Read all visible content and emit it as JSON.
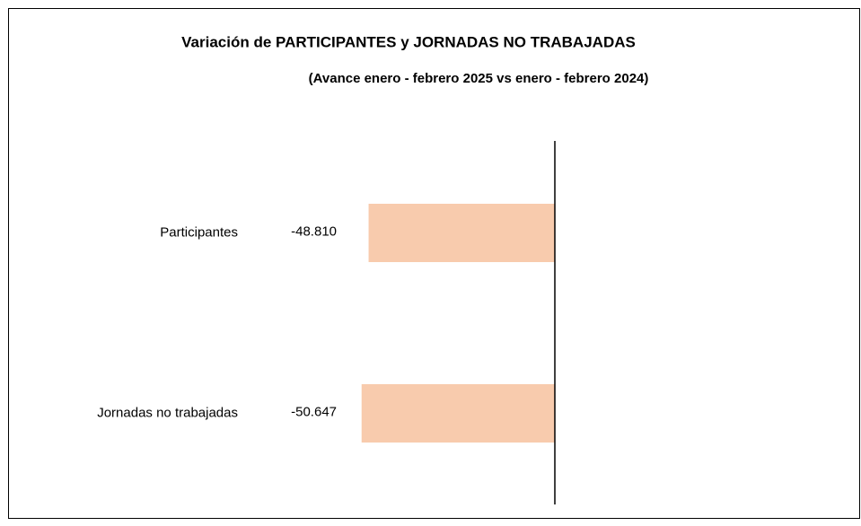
{
  "chart_data": {
    "type": "bar",
    "orientation": "horizontal",
    "title": "Variación de PARTICIPANTES y JORNADAS NO TRABAJADAS",
    "subtitle": "(Avance enero - febrero 2025 vs enero - febrero 2024)",
    "categories": [
      "Participantes",
      "Jornadas no trabajadas"
    ],
    "values": [
      -48810,
      -50647
    ],
    "value_labels": [
      "-48.810",
      "-50.647"
    ],
    "color": "#f8cbad",
    "xlim": [
      -80000,
      80000
    ]
  }
}
